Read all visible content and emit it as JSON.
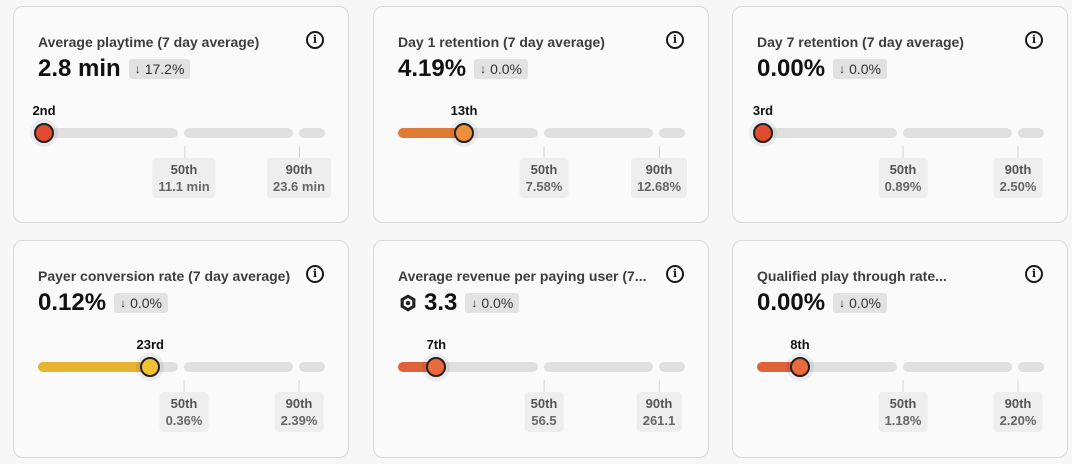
{
  "cards": [
    {
      "title": "Average playtime (7 day average)",
      "value": "2.8 min",
      "delta": "17.2%",
      "rank": "2nd",
      "percentile_fraction": 0.0,
      "fill_color": "#d9472b",
      "marker_color": "#e04a2f",
      "p50_label": "50th",
      "p50_value": "11.1 min",
      "p90_label": "90th",
      "p90_value": "23.6 min"
    },
    {
      "title": "Day 1 retention (7 day average)",
      "value": "4.19%",
      "delta": "0.0%",
      "rank": "13th",
      "percentile_fraction": 0.13,
      "fill_color": "#e07b35",
      "marker_color": "#ee8f3d",
      "p50_label": "50th",
      "p50_value": "7.58%",
      "p90_label": "90th",
      "p90_value": "12.68%"
    },
    {
      "title": "Day 7 retention (7 day average)",
      "value": "0.00%",
      "delta": "0.0%",
      "rank": "3rd",
      "percentile_fraction": 0.0,
      "fill_color": "#d9472b",
      "marker_color": "#e04a2f",
      "p50_label": "50th",
      "p50_value": "0.89%",
      "p90_label": "90th",
      "p90_value": "2.50%"
    },
    {
      "title": "Payer conversion rate (7 day average)",
      "value": "0.12%",
      "delta": "0.0%",
      "rank": "23rd",
      "percentile_fraction": 0.23,
      "fill_color": "#e6b431",
      "marker_color": "#f2c232",
      "p50_label": "50th",
      "p50_value": "0.36%",
      "p90_label": "90th",
      "p90_value": "2.39%"
    },
    {
      "title": "Average revenue per paying user (7...",
      "value": "3.3",
      "currency_icon": "robux-icon",
      "delta": "0.0%",
      "rank": "7th",
      "percentile_fraction": 0.07,
      "fill_color": "#e0623a",
      "marker_color": "#ea6a3b",
      "p50_label": "50th",
      "p50_value": "56.5",
      "p90_label": "90th",
      "p90_value": "261.1"
    },
    {
      "title": "Qualified play through rate...",
      "value": "0.00%",
      "delta": "0.0%",
      "rank": "8th",
      "percentile_fraction": 0.08,
      "fill_color": "#e0623a",
      "marker_color": "#ea6a3b",
      "p50_label": "50th",
      "p50_value": "1.18%",
      "p90_label": "90th",
      "p90_value": "2.20%"
    }
  ],
  "icons": {
    "info": "info-icon",
    "delta": "arrow-down-icon"
  },
  "glyphs": {
    "info": "i",
    "arrow": "↓"
  }
}
